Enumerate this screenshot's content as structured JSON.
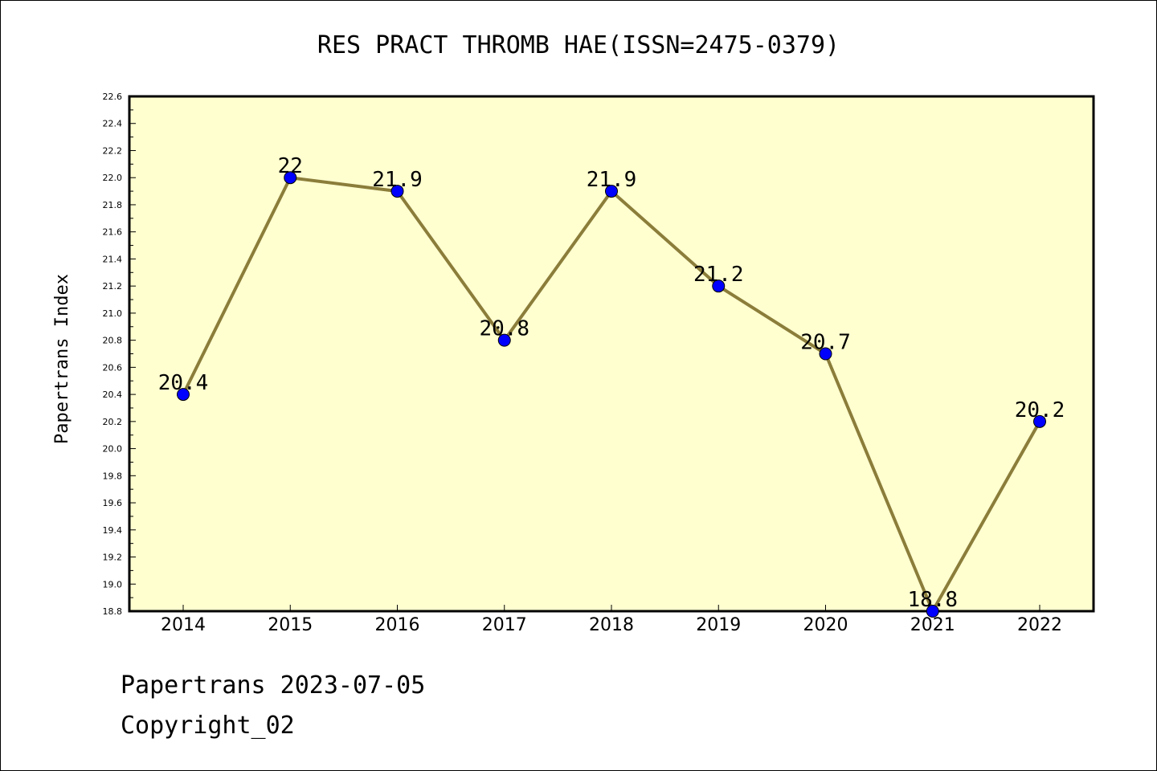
{
  "chart_data": {
    "type": "line",
    "title": "RES PRACT THROMB HAE(ISSN=2475-0379)",
    "ylabel": "Papertrans Index",
    "xlabel": "",
    "categories": [
      "2014",
      "2015",
      "2016",
      "2017",
      "2018",
      "2019",
      "2020",
      "2021",
      "2022"
    ],
    "values": [
      20.4,
      22,
      21.9,
      20.8,
      21.9,
      21.2,
      20.7,
      18.8,
      20.2
    ],
    "data_labels": [
      "20.4",
      "22",
      "21.9",
      "20.8",
      "21.9",
      "21.2",
      "20.7",
      "18.8",
      "20.2"
    ],
    "ylim": [
      18.8,
      22.6
    ],
    "yticks": [
      "18.8",
      "19.0",
      "19.2",
      "19.4",
      "19.6",
      "19.8",
      "20.0",
      "20.2",
      "20.4",
      "20.6",
      "20.8",
      "21.0",
      "21.2",
      "21.4",
      "21.6",
      "21.8",
      "22.0",
      "22.2",
      "22.4",
      "22.6"
    ],
    "grid": false,
    "colors": {
      "plot_background": "#ffffd0",
      "line": "#8b7d3a",
      "marker": "#0000ff"
    }
  },
  "footer": {
    "line1": "Papertrans 2023-07-05",
    "line2": "Copyright_02"
  }
}
